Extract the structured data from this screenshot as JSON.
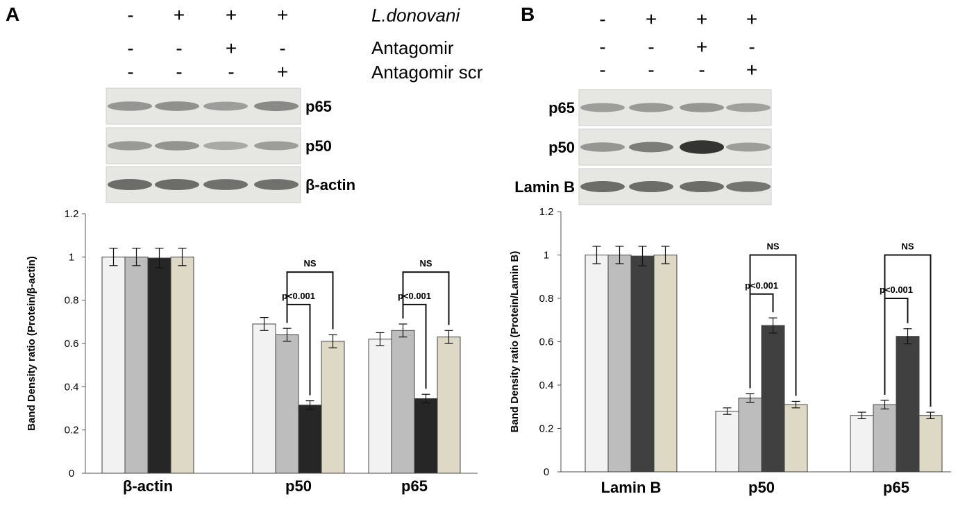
{
  "panels": [
    {
      "letter": "A",
      "conditions": [
        {
          "label": "L.donovani",
          "italic": true,
          "signs": [
            "-",
            "+",
            "+",
            "+"
          ]
        },
        {
          "label": "Antagomir",
          "italic": false,
          "signs": [
            "-",
            "-",
            "+",
            "-"
          ]
        },
        {
          "label": "Antagomir scr",
          "italic": false,
          "signs": [
            "-",
            "-",
            "-",
            "+"
          ]
        }
      ],
      "blots": [
        {
          "label": "p65",
          "intensity": [
            0.35,
            0.38,
            0.3,
            0.42
          ]
        },
        {
          "label": "p50",
          "intensity": [
            0.32,
            0.36,
            0.22,
            0.3
          ]
        },
        {
          "label": "β-actin",
          "intensity": [
            0.6,
            0.6,
            0.58,
            0.58
          ]
        }
      ]
    },
    {
      "letter": "B",
      "conditions": [
        {
          "label": "",
          "italic": false,
          "signs": [
            "-",
            "+",
            "+",
            "+"
          ]
        },
        {
          "label": "",
          "italic": false,
          "signs": [
            "-",
            "-",
            "+",
            "-"
          ]
        },
        {
          "label": "",
          "italic": false,
          "signs": [
            "-",
            "-",
            "-",
            "+"
          ]
        }
      ],
      "blots": [
        {
          "label": "p65",
          "intensity": [
            0.3,
            0.32,
            0.34,
            0.28
          ]
        },
        {
          "label": "p50",
          "intensity": [
            0.35,
            0.5,
            0.95,
            0.3
          ]
        },
        {
          "label": "Lamin B",
          "intensity": [
            0.6,
            0.6,
            0.6,
            0.55
          ]
        }
      ]
    }
  ],
  "chart_data": [
    {
      "type": "bar",
      "panel": "A",
      "ylabel": "Band Density ratio  (Protein/β-actin)",
      "ylim": [
        0,
        1.2
      ],
      "yticks": [
        "0",
        "0.2",
        "0.4",
        "0.6",
        "0.8",
        "1",
        "1.2"
      ],
      "categories": [
        "β-actin",
        "p50",
        "p65"
      ],
      "series": [
        {
          "color": "#f2f2f2",
          "values": [
            1.0,
            0.69,
            0.62
          ],
          "errors": [
            0.04,
            0.03,
            0.03
          ]
        },
        {
          "color": "#bdbdbd",
          "values": [
            1.0,
            0.64,
            0.66
          ],
          "errors": [
            0.04,
            0.03,
            0.03
          ]
        },
        {
          "color": "#262626",
          "values": [
            0.995,
            0.315,
            0.345
          ],
          "errors": [
            0.045,
            0.02,
            0.02
          ]
        },
        {
          "color": "#ddd9c4",
          "values": [
            1.0,
            0.61,
            0.63
          ],
          "errors": [
            0.04,
            0.03,
            0.03
          ]
        }
      ],
      "annotations": [
        {
          "text": "p<0.001",
          "category": 1,
          "from": 1,
          "to": 2,
          "level": 0.78
        },
        {
          "text": "NS",
          "category": 1,
          "from": 1,
          "to": 3,
          "level": 0.93
        },
        {
          "text": "p<0.001",
          "category": 2,
          "from": 1,
          "to": 2,
          "level": 0.78
        },
        {
          "text": "NS",
          "category": 2,
          "from": 1,
          "to": 3,
          "level": 0.93
        }
      ]
    },
    {
      "type": "bar",
      "panel": "B",
      "ylabel": "Band Density ratio (Protein/Lamin B)",
      "ylim": [
        0,
        1.2
      ],
      "yticks": [
        "0",
        "0.2",
        "0.4",
        "0.6",
        "0.8",
        "1",
        "1.2"
      ],
      "categories": [
        "Lamin B",
        "p50",
        "p65"
      ],
      "series": [
        {
          "color": "#f2f2f2",
          "values": [
            1.0,
            0.28,
            0.26
          ],
          "errors": [
            0.04,
            0.015,
            0.015
          ]
        },
        {
          "color": "#bdbdbd",
          "values": [
            1.0,
            0.34,
            0.31
          ],
          "errors": [
            0.04,
            0.02,
            0.02
          ]
        },
        {
          "color": "#404040",
          "values": [
            0.995,
            0.675,
            0.625
          ],
          "errors": [
            0.045,
            0.035,
            0.035
          ]
        },
        {
          "color": "#ddd9c4",
          "values": [
            1.0,
            0.31,
            0.26
          ],
          "errors": [
            0.04,
            0.015,
            0.015
          ]
        }
      ],
      "annotations": [
        {
          "text": "p<0.001",
          "category": 1,
          "from": 1,
          "to": 2,
          "level": 0.82
        },
        {
          "text": "NS",
          "category": 1,
          "from": 1,
          "to": 3,
          "level": 1.0
        },
        {
          "text": "p<0.001",
          "category": 2,
          "from": 1,
          "to": 2,
          "level": 0.8
        },
        {
          "text": "NS",
          "category": 2,
          "from": 1,
          "to": 3,
          "level": 1.0
        }
      ]
    }
  ]
}
